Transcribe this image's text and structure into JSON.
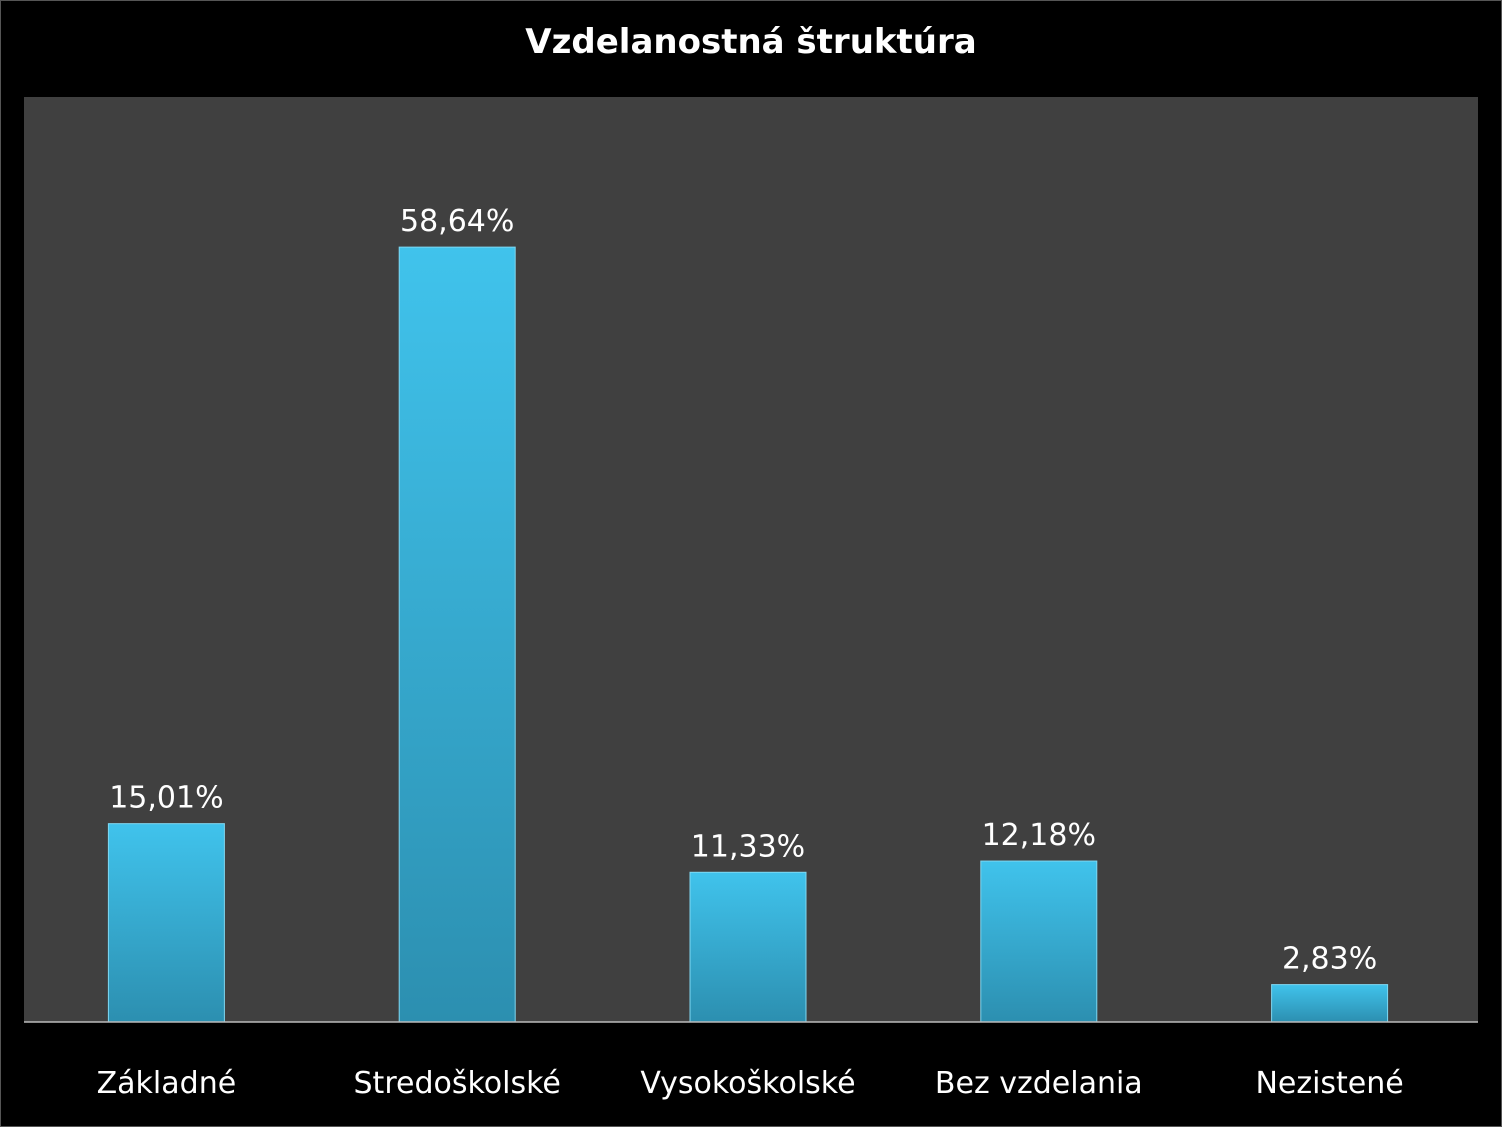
{
  "chart_data": {
    "type": "bar",
    "title": "Vzdelanostná štruktúra",
    "categories": [
      "Základné",
      "Stredoškolské",
      "Vysokoškolské",
      "Bez vzdelania",
      "Nezistené"
    ],
    "values": [
      15.01,
      58.64,
      11.33,
      12.18,
      2.83
    ],
    "data_labels": [
      "15,01%",
      "58,64%",
      "11,33%",
      "12,18%",
      "2,83%"
    ],
    "xlabel": "",
    "ylabel": "",
    "ylim": [
      0,
      70
    ],
    "grid": false,
    "legend": "none",
    "colors": {
      "bar_top": "#40c3ec",
      "bar_bottom": "#2c8fb0",
      "plot_background": "#404040",
      "background": "#000000",
      "text": "#ffffff"
    }
  }
}
